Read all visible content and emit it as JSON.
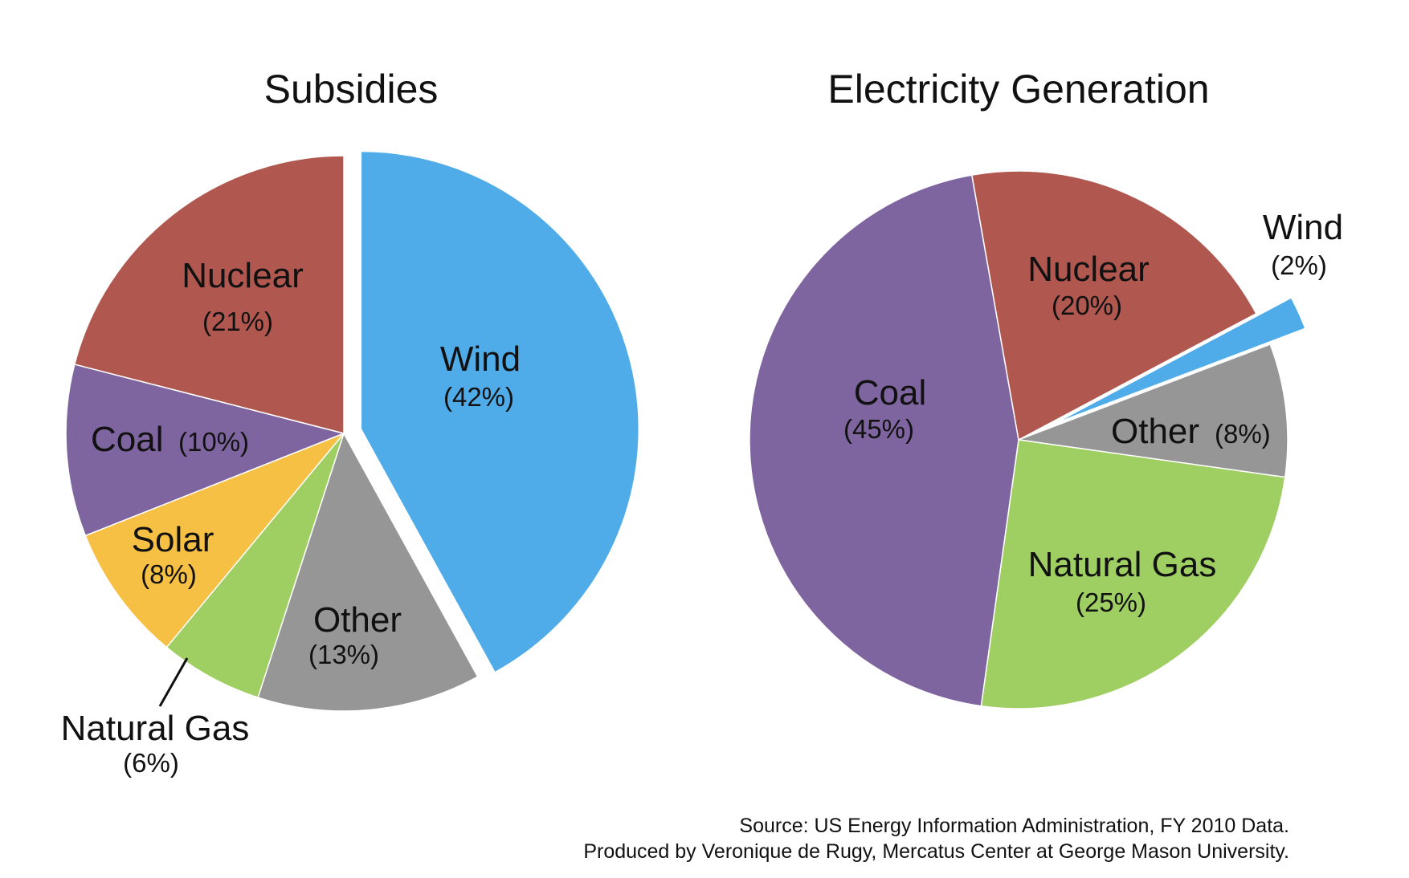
{
  "colors": {
    "wind": "#50ACE8",
    "other": "#969696",
    "natural_gas": "#9FCE62",
    "solar": "#F5C043",
    "coal": "#7E65A0",
    "nuclear": "#B0574F"
  },
  "chart_data": [
    {
      "type": "pie",
      "title": "Subsidies",
      "start_angle_deg": 0,
      "direction": "clockwise",
      "exploded": [
        "Wind"
      ],
      "slices": [
        {
          "label": "Wind",
          "value": 42,
          "value_label": "(42%)",
          "color_key": "wind"
        },
        {
          "label": "Other",
          "value": 13,
          "value_label": "(13%)",
          "color_key": "other"
        },
        {
          "label": "Natural Gas",
          "value": 6,
          "value_label": "(6%)",
          "color_key": "natural_gas"
        },
        {
          "label": "Solar",
          "value": 8,
          "value_label": "(8%)",
          "color_key": "solar"
        },
        {
          "label": "Coal",
          "value": 10,
          "value_label": "(10%)",
          "color_key": "coal"
        },
        {
          "label": "Nuclear",
          "value": 21,
          "value_label": "(21%)",
          "color_key": "nuclear"
        }
      ]
    },
    {
      "type": "pie",
      "title": "Electricity Generation",
      "start_angle_deg": 62,
      "direction": "clockwise",
      "exploded": [
        "Wind"
      ],
      "slices": [
        {
          "label": "Wind",
          "value": 2,
          "value_label": "(2%)",
          "color_key": "wind"
        },
        {
          "label": "Other",
          "value": 8,
          "value_label": "(8%)",
          "color_key": "other"
        },
        {
          "label": "Natural Gas",
          "value": 25,
          "value_label": "(25%)",
          "color_key": "natural_gas"
        },
        {
          "label": "Coal",
          "value": 45,
          "value_label": "(45%)",
          "color_key": "coal"
        },
        {
          "label": "Nuclear",
          "value": 20,
          "value_label": "(20%)",
          "color_key": "nuclear"
        }
      ]
    }
  ],
  "source": {
    "line1": "Source:  US Energy Information Administration, FY 2010 Data.",
    "line2": "Produced by Veronique de Rugy, Mercatus Center at George Mason University."
  }
}
